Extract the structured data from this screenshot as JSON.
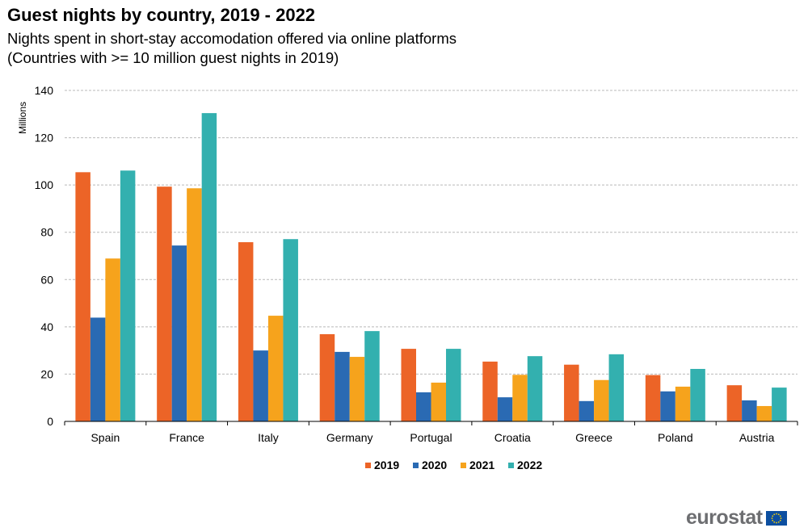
{
  "header": {
    "title": "Guest nights by country, 2019 - 2022",
    "subtitle_line1": "Nights spent in short-stay accomodation offered via online platforms",
    "subtitle_line2": "(Countries with >= 10 million guest nights in 2019)"
  },
  "logo": {
    "text": "eurostat",
    "flag_icon": "eu-flag-icon"
  },
  "chart_data": {
    "type": "bar",
    "title": "Guest nights by country, 2019 - 2022",
    "xlabel": "",
    "ylabel": "Millions",
    "ylim": [
      0,
      140
    ],
    "yticks": [
      0,
      20,
      40,
      60,
      80,
      100,
      120,
      140
    ],
    "grid": true,
    "legend_position": "bottom-center",
    "categories": [
      "Spain",
      "France",
      "Italy",
      "Germany",
      "Portugal",
      "Croatia",
      "Greece",
      "Poland",
      "Austria"
    ],
    "series": [
      {
        "name": "2019",
        "color": "#ec6427",
        "values": [
          105.4,
          99.3,
          75.8,
          36.9,
          30.7,
          25.3,
          24.0,
          19.6,
          15.3
        ]
      },
      {
        "name": "2020",
        "color": "#2a6ab3",
        "values": [
          43.9,
          74.4,
          30.0,
          29.4,
          12.3,
          10.2,
          8.6,
          12.7,
          8.9
        ]
      },
      {
        "name": "2021",
        "color": "#f6a31c",
        "values": [
          68.9,
          98.6,
          44.7,
          27.3,
          16.4,
          19.7,
          17.5,
          14.7,
          6.5
        ]
      },
      {
        "name": "2022",
        "color": "#33b0af",
        "values": [
          106.1,
          130.4,
          77.1,
          38.2,
          30.7,
          27.6,
          28.4,
          22.2,
          14.3
        ]
      }
    ]
  }
}
